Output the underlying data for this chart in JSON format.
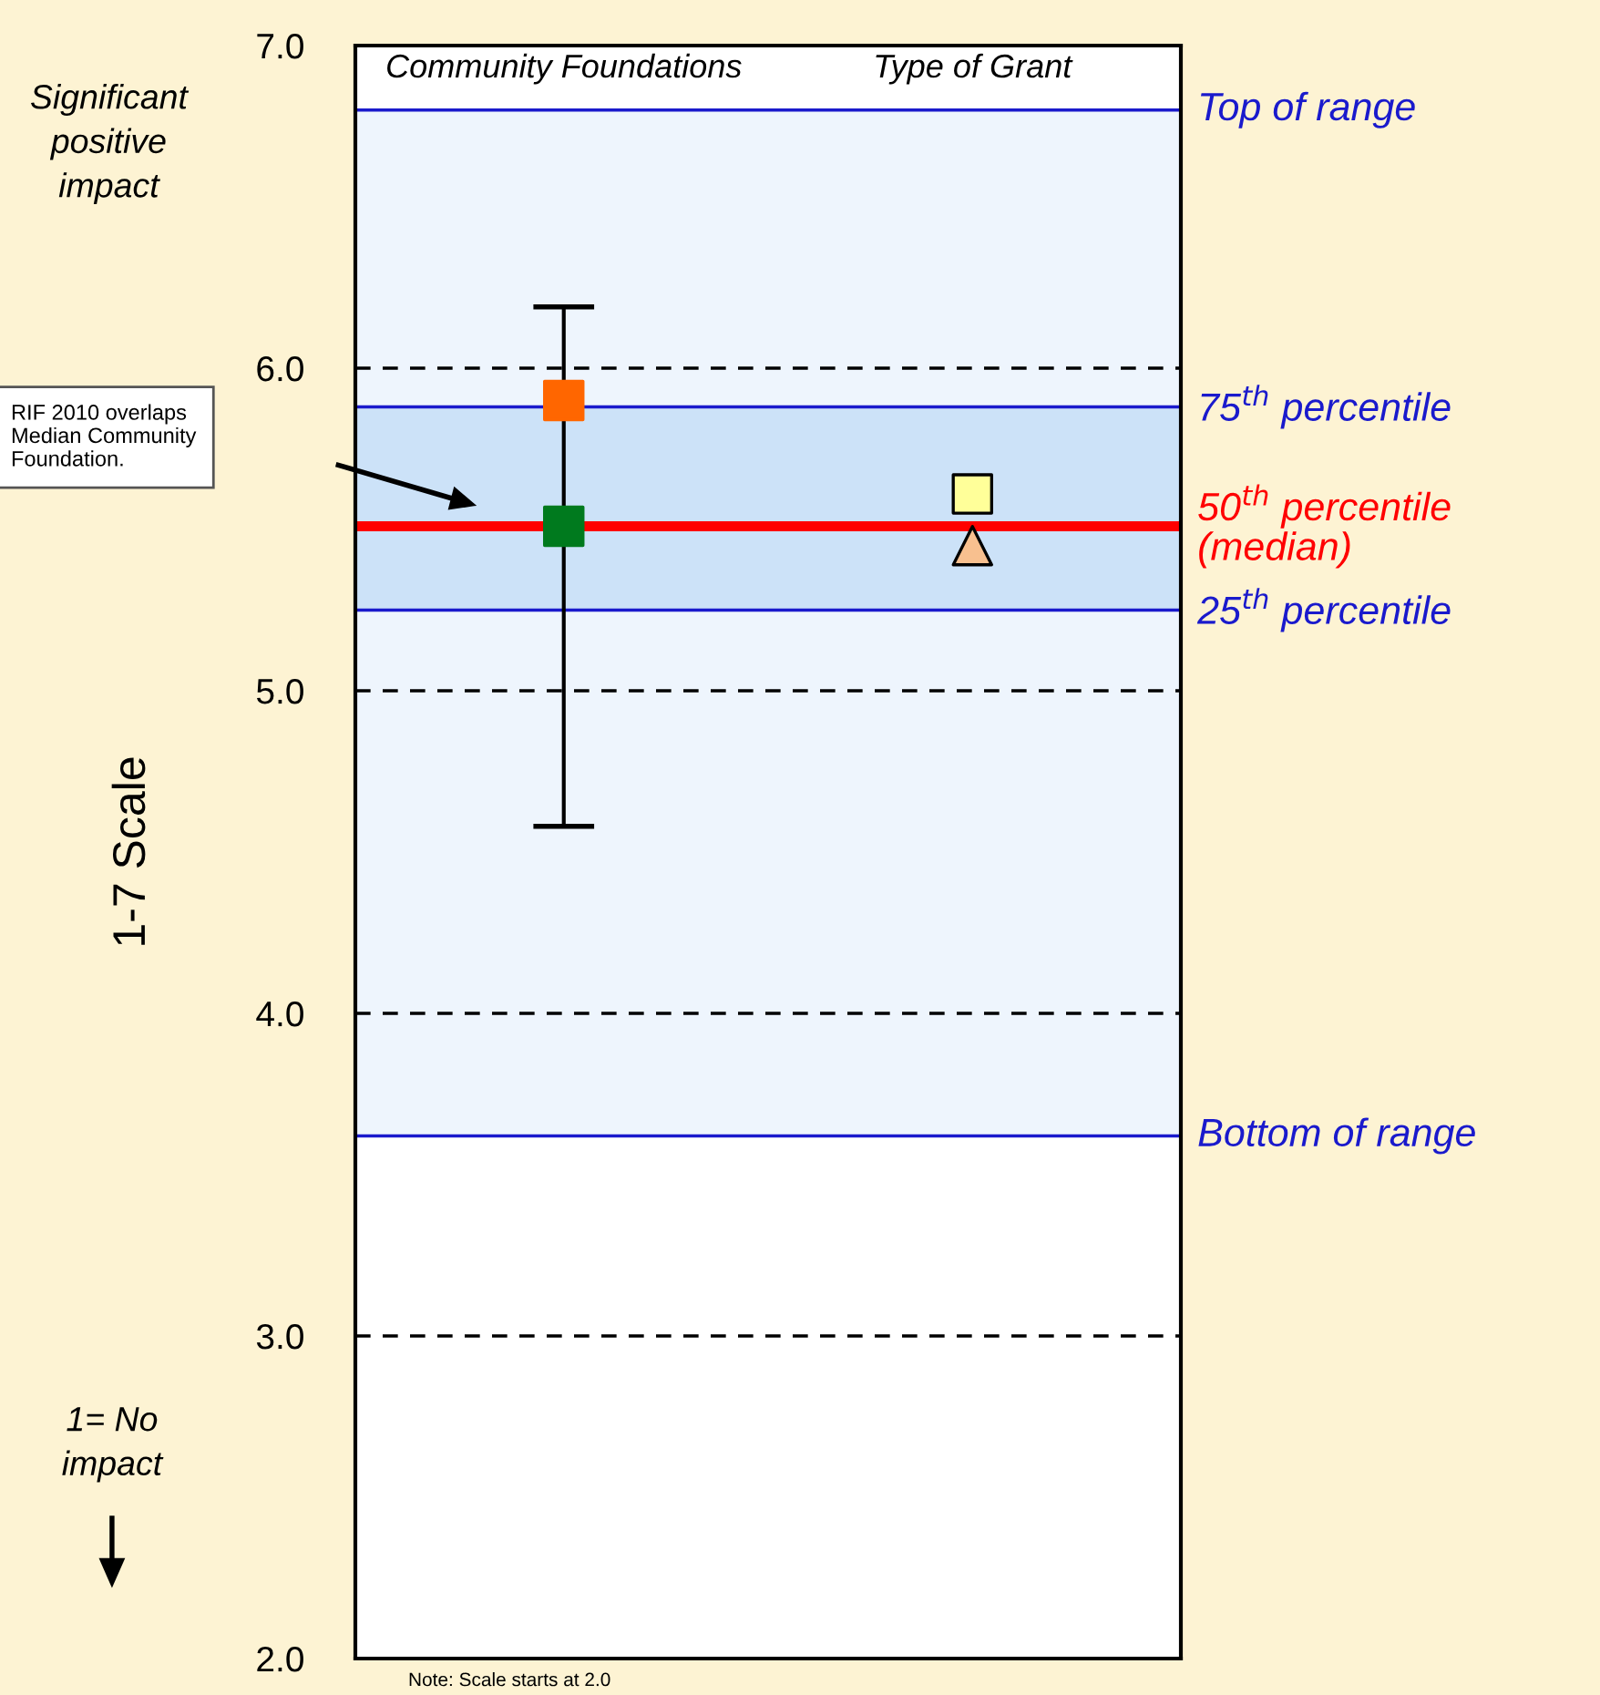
{
  "chart_data": {
    "type": "scatter",
    "ylabel": "1-7 Scale",
    "categories": [
      "Community Foundations",
      "Type of Grant"
    ],
    "ylim": [
      2.0,
      7.0
    ],
    "yticks": [
      {
        "value": 2,
        "label": "2.0"
      },
      {
        "value": 3,
        "label": "3.0"
      },
      {
        "value": 4,
        "label": "4.0"
      },
      {
        "value": 5,
        "label": "5.0"
      },
      {
        "value": 6,
        "label": "6.0"
      },
      {
        "value": 7,
        "label": "7.0"
      }
    ],
    "grid": "y",
    "line_style": "dashed",
    "series": [
      {
        "marker": "square",
        "color": "#ff6600",
        "values": [
          5.9,
          null
        ]
      },
      {
        "marker": "square",
        "color": "#007a1e",
        "values": [
          5.51,
          null
        ],
        "errors": [
          [
            4.58,
            6.19
          ],
          null
        ]
      },
      {
        "marker": "square",
        "color": "#ffff99",
        "values": [
          null,
          5.61
        ]
      },
      {
        "marker": "triangle",
        "color": "#f8c08f",
        "values": [
          null,
          5.45
        ]
      }
    ],
    "bands": [
      {
        "axis": "y",
        "from": 3.62,
        "to": 6.8,
        "color": "#eef5fd"
      },
      {
        "axis": "y",
        "from": 5.25,
        "to": 5.88,
        "color": "#cce2f8"
      }
    ],
    "ref_lines": [
      {
        "axis": "y",
        "value": 6.8,
        "label": "Top of range",
        "color": "#1a1acc"
      },
      {
        "axis": "y",
        "value": 5.88,
        "label": "75$^{th}$ percentile",
        "color": "#1a1acc"
      },
      {
        "axis": "y",
        "value": 5.51,
        "label": "50$^{th}$ percentile\n(median)",
        "color": "#ff0000"
      },
      {
        "axis": "y",
        "value": 5.25,
        "label": "25$^{th}$ percentile",
        "color": "#1a1acc"
      },
      {
        "axis": "y",
        "value": 3.62,
        "label": "Bottom of range",
        "color": "#1a1acc"
      }
    ],
    "annotations": [
      "Significant\npositive\nimpact",
      "1= No\nimpact",
      "RIF 2010 overlaps\nMedian Community\nFoundation.",
      "Note: Scale starts at 2.0"
    ]
  }
}
